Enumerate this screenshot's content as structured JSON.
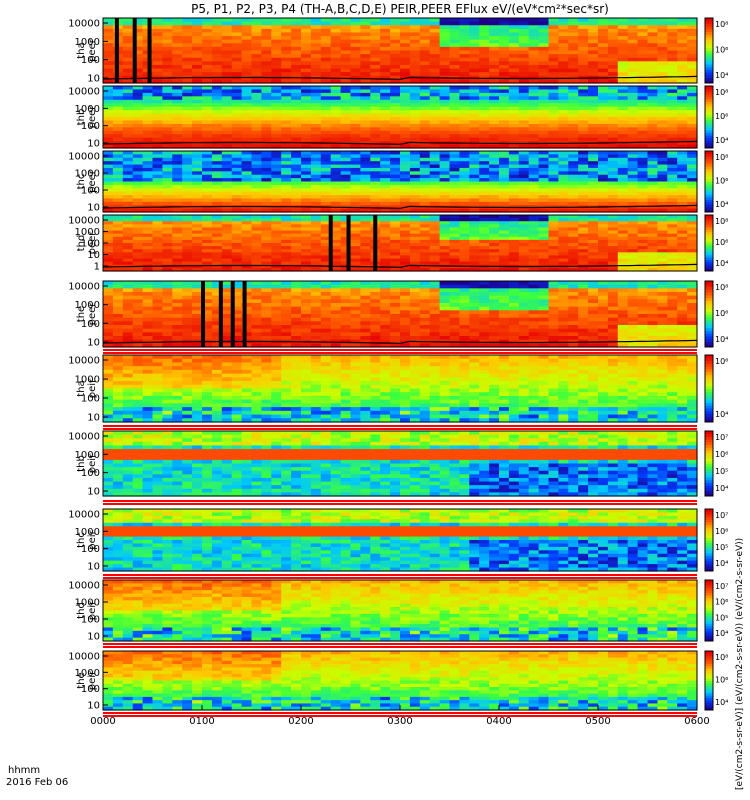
{
  "title": "P5, P1, P2, P3, P4 (TH-A,B,C,D,E) PEIR,PEER EFlux eV/(eV*cm²*sec*sr)",
  "footer": {
    "time_label": "hhmm",
    "date_label": "2016 Feb 06"
  },
  "colorbar_label": "[eV/(cm2-s-sr-eV)] (eV/(cm2-s-sr-eV)) (eV/(cm2-s-sr-eV))",
  "colors": {
    "bg": "#ffffff",
    "axis": "#000000",
    "band_red": "#ff0000",
    "band_white": "#ffffff"
  },
  "chart_data": {
    "type": "heatmap",
    "x_ticks": [
      "0000",
      "0100",
      "0200",
      "0300",
      "0400",
      "0500",
      "0600"
    ],
    "panels": [
      {
        "probe": "tha",
        "species": "peer",
        "y_ticks": [
          "10",
          "100",
          "1000",
          "10000"
        ],
        "cbar_ticks": [
          "10⁴",
          "10⁶",
          "10⁸"
        ],
        "pattern": "electron",
        "gaps": [
          0.02,
          0.05,
          0.075
        ]
      },
      {
        "probe": "thb",
        "species": "peer",
        "y_ticks": [
          "10",
          "100",
          "1000",
          "10000"
        ],
        "cbar_ticks": [
          "10⁴",
          "10⁶",
          "10⁸"
        ],
        "pattern": "electron_b",
        "gaps": []
      },
      {
        "probe": "thc",
        "species": "peer",
        "y_ticks": [
          "10",
          "100",
          "1000",
          "10000"
        ],
        "cbar_ticks": [
          "10⁴",
          "10⁶",
          "10⁸"
        ],
        "pattern": "electron_c",
        "gaps": []
      },
      {
        "probe": "thd",
        "species": "peer",
        "y_ticks": [
          "1",
          "10",
          "100",
          "1000",
          "10000"
        ],
        "cbar_ticks": [
          "10⁴",
          "10⁶",
          "10⁸"
        ],
        "pattern": "electron",
        "gaps": [
          0.38,
          0.41,
          0.455
        ]
      },
      {
        "probe": "the",
        "species": "peer",
        "y_ticks": [
          "10",
          "100",
          "1000",
          "10000"
        ],
        "cbar_ticks": [
          "10⁴",
          "10⁶",
          "10⁸"
        ],
        "pattern": "electron",
        "gaps": [
          0.165,
          0.195,
          0.215,
          0.235
        ]
      },
      {
        "probe": "tha",
        "species": "peir",
        "y_ticks": [
          "10",
          "100",
          "1000",
          "10000"
        ],
        "cbar_ticks": [
          "10⁴",
          "10⁶"
        ],
        "pattern": "ion",
        "gaps": []
      },
      {
        "probe": "thb",
        "species": "peir",
        "y_ticks": [
          "10",
          "100",
          "1000",
          "10000"
        ],
        "cbar_ticks": [
          "10⁴",
          "10⁵",
          "10⁶",
          "10⁷"
        ],
        "pattern": "ion_b",
        "gaps": []
      },
      {
        "probe": "thc",
        "species": "peir",
        "y_ticks": [
          "10",
          "100",
          "1000",
          "10000"
        ],
        "cbar_ticks": [
          "10⁴",
          "10⁵",
          "10⁶",
          "10⁷"
        ],
        "pattern": "ion_b",
        "gaps": []
      },
      {
        "probe": "thd",
        "species": "peir",
        "y_ticks": [
          "10",
          "100",
          "1000",
          "10000"
        ],
        "cbar_ticks": [
          "10⁴",
          "10⁵",
          "10⁶",
          "10⁷"
        ],
        "pattern": "ion",
        "gaps": []
      },
      {
        "probe": "the",
        "species": "peir",
        "y_ticks": [
          "10",
          "100",
          "1000",
          "10000"
        ],
        "cbar_ticks": [
          "10⁴",
          "10⁶",
          "10⁸"
        ],
        "pattern": "ion",
        "gaps": []
      }
    ]
  }
}
